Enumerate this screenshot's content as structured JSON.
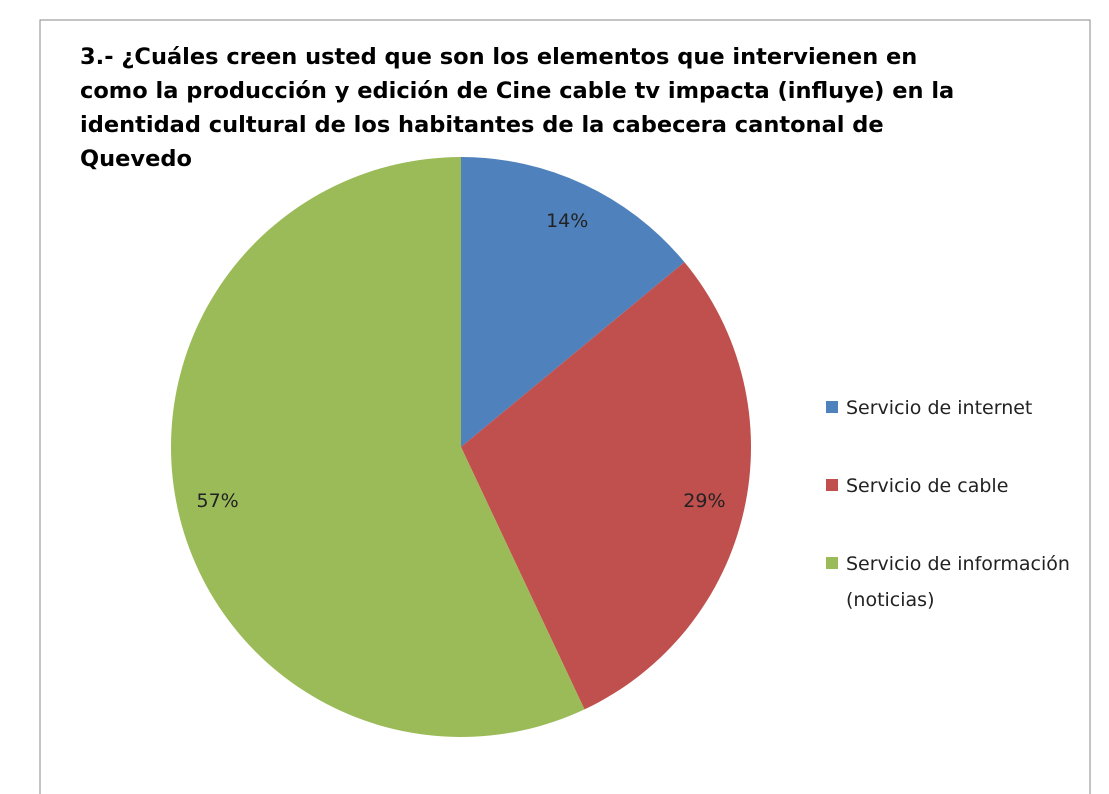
{
  "chart_data": {
    "type": "pie",
    "title": "3.- ¿Cuáles creen usted que son los elementos que intervienen en como la producción y edición de Cine cable tv impacta (influye) en la identidad cultural de los habitantes de la cabecera cantonal de Quevedo",
    "categories": [
      "Servicio de internet",
      "Servicio de cable",
      "Servicio de información (noticias)"
    ],
    "values": [
      14,
      29,
      57
    ],
    "value_labels": [
      "14%",
      "29%",
      "57%"
    ],
    "colors": [
      "#4f81bd",
      "#c0504d",
      "#9bbb59"
    ],
    "legend": "right"
  }
}
